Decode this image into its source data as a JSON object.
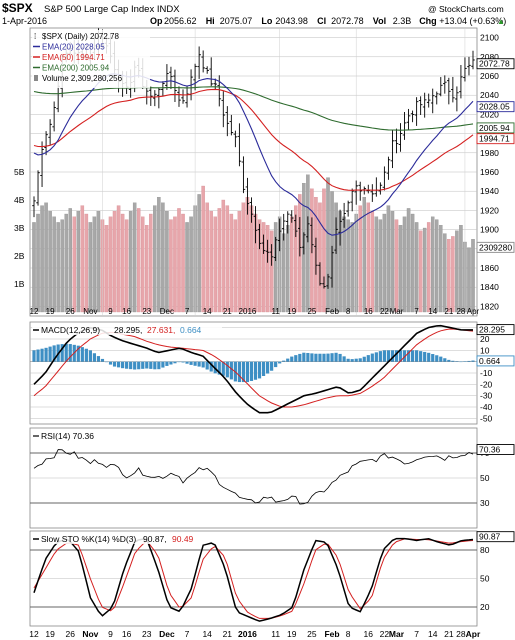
{
  "header": {
    "symbol": "$SPX",
    "name": "S&P 500 Large Cap Index INDX",
    "credit": "@ StockCharts.com",
    "date": "1-Apr-2016",
    "stats": [
      {
        "label": "Op",
        "value": "2056.62"
      },
      {
        "label": "Hi",
        "value": "2075.07"
      },
      {
        "label": "Lo",
        "value": "2043.98"
      },
      {
        "label": "Cl",
        "value": "2072.78"
      },
      {
        "label": "Vol",
        "value": "2.3B"
      },
      {
        "label": "Chg",
        "value": "+13.04 (+0.63%)"
      }
    ],
    "up_glyph": "▲"
  },
  "price_panel": {
    "legend": [
      "$SPX (Daily) 2072.78",
      "EMA(20) 2028.05",
      "EMA(50) 1994.71",
      "EMA(200) 2005.94",
      "Volume 2,309,280,256"
    ],
    "y_ticks": [
      "2100",
      "2080",
      "2060",
      "2040",
      "2020",
      "2000",
      "1980",
      "1960",
      "1940",
      "1920",
      "1900",
      "1880",
      "1860",
      "1840",
      "1820"
    ],
    "vol_ticks": [
      "5B",
      "4B",
      "3B",
      "2B",
      "1B"
    ],
    "tags": [
      "2072.78",
      "2028.05",
      "2005.94",
      "1994.71",
      "2309280"
    ],
    "inner_dates": [
      "12",
      "19",
      "26",
      "Nov",
      "9",
      "16",
      "23",
      "Dec",
      "7",
      "14",
      "21",
      "2016",
      "11",
      "19",
      "25",
      "Feb",
      "8",
      "16",
      "22",
      "Mar",
      "7",
      "14",
      "21",
      "28",
      "Apr"
    ]
  },
  "macd_panel": {
    "label": "MACD(12,26,9)",
    "v1": "28.295,",
    "v2": "27.631,",
    "v3": "0.664",
    "y_ticks": [
      "30",
      "20",
      "10",
      "0",
      "-10",
      "-20",
      "-30",
      "-40",
      "-50"
    ],
    "tags": [
      "28.295",
      "0.664"
    ]
  },
  "rsi_panel": {
    "label": "RSI(14) 70.36",
    "y_ticks": [
      "70",
      "50",
      "30"
    ],
    "tag": "70.36"
  },
  "sto_panel": {
    "label_a": "Slow STO %K(14) %D(3)",
    "v1": "90.87,",
    "v2": "90.49",
    "y_ticks": [
      "80",
      "50",
      "20"
    ],
    "tag": "90.87"
  },
  "x_axis": {
    "labels": [
      "12",
      "19",
      "26",
      "Nov",
      "9",
      "16",
      "23",
      "Dec",
      "7",
      "14",
      "21",
      "2016",
      "11",
      "19",
      "25",
      "Feb",
      "8",
      "16",
      "22",
      "Mar",
      "7",
      "14",
      "21",
      "28",
      "Apr"
    ]
  },
  "colors": {
    "ema20": "#2b2b9a",
    "ema50": "#d42020",
    "ema200": "#2e6b2e",
    "vol_up": "#a8a8a8",
    "vol_down": "#e7a6ab",
    "macd_hist": "#3e8fc4",
    "sto_d": "#d42020",
    "grid": "#bdbdbd"
  },
  "chart_data": [
    {
      "type": "ohlc",
      "panel": "price",
      "title": "S&P 500 Large Cap Index INDX",
      "ylim": [
        1810,
        2110
      ],
      "x": [
        "12",
        "19",
        "26",
        "Nov",
        "9",
        "16",
        "23",
        "Dec",
        "7",
        "14",
        "21",
        "2016",
        "11",
        "19",
        "25",
        "Feb",
        "8",
        "16",
        "22",
        "Mar",
        "7",
        "14",
        "21",
        "28",
        "Apr"
      ],
      "close_knots": [
        1930,
        1995,
        2015,
        2075,
        2090,
        2080,
        2085,
        2100,
        2090,
        2065,
        2040,
        2070,
        2050,
        2035,
        2055,
        2060,
        2030,
        2050,
        2085,
        2060,
        2045,
        2012,
        1995,
        1940,
        1910,
        1880,
        1870,
        1905,
        1920,
        1880,
        1910,
        1850,
        1840,
        1895,
        1915,
        1945,
        1945,
        1940,
        1945,
        1985,
        2000,
        2020,
        2030,
        2032,
        2045,
        2050,
        2040,
        2065,
        2073
      ],
      "series": [
        {
          "name": "EMA(20)",
          "value": 2028.05
        },
        {
          "name": "EMA(50)",
          "value": 1994.71
        },
        {
          "name": "EMA(200)",
          "value": 2005.94
        }
      ]
    },
    {
      "type": "bar",
      "panel": "volume",
      "ylim": [
        0,
        5
      ],
      "unit": "B",
      "values": [
        3.2,
        3.5,
        3.8,
        3.9,
        3.6,
        3.4,
        3.2,
        3.3,
        3.5,
        3.7,
        3.4,
        3.6,
        3.8,
        3.5,
        3.2,
        3.4,
        3.6,
        3.3,
        3.1,
        3.4,
        3.6,
        3.8,
        3.5,
        3.3,
        3.6,
        3.9,
        3.7,
        3.4,
        3.1,
        3.5,
        3.8,
        4.1,
        3.9,
        3.6,
        3.3,
        3.4,
        3.7,
        3.5,
        3.2,
        3.4,
        3.8,
        4.2,
        4.5,
        3.9,
        3.6,
        3.4,
        3.7,
        4.0,
        3.8,
        3.5,
        3.3,
        3.6,
        3.9,
        4.1,
        3.8,
        3.5,
        3.3,
        3.2,
        3.1,
        2.9,
        3.2,
        3.4,
        2.8,
        3.1,
        3.4,
        3.8,
        4.2,
        4.6,
        4.9,
        4.4,
        4.1,
        3.9,
        4.4,
        4.8,
        4.3,
        3.9,
        3.6,
        3.4,
        3.3,
        3.2,
        3.5,
        3.8,
        4.1,
        3.9,
        3.6,
        3.4,
        3.3,
        3.5,
        3.8,
        3.6,
        3.3,
        3.1,
        3.4,
        3.7,
        3.5,
        3.2,
        2.9,
        3.0,
        3.2,
        3.4,
        3.3,
        3.1,
        2.8,
        2.6,
        2.7,
        2.9,
        3.1,
        2.5,
        2.3,
        2.6
      ],
      "last_value": 2309280256
    },
    {
      "type": "line",
      "panel": "macd",
      "ylim": [
        -55,
        35
      ],
      "series": [
        {
          "name": "MACD(12,26,9)",
          "value": 28.295,
          "knots": [
            -20,
            -10,
            5,
            18,
            26,
            30,
            28,
            22,
            18,
            15,
            12,
            8,
            10,
            12,
            8,
            5,
            -5,
            -15,
            -28,
            -38,
            -45,
            -45,
            -40,
            -35,
            -30,
            -28,
            -25,
            -22,
            -28,
            -25,
            -15,
            -5,
            5,
            15,
            25,
            30,
            32,
            30,
            28,
            28
          ]
        },
        {
          "name": "Signal",
          "value": 27.631,
          "knots": [
            -30,
            -22,
            -10,
            2,
            12,
            20,
            25,
            26,
            24,
            22,
            18,
            15,
            13,
            12,
            11,
            10,
            5,
            -2,
            -10,
            -20,
            -30,
            -36,
            -40,
            -40,
            -38,
            -35,
            -32,
            -30,
            -30,
            -28,
            -22,
            -15,
            -5,
            5,
            15,
            22,
            27,
            29,
            28,
            27
          ]
        },
        {
          "name": "Histogram",
          "value": 0.664
        }
      ]
    },
    {
      "type": "line",
      "panel": "rsi",
      "ylim": [
        10,
        90
      ],
      "series": [
        {
          "name": "RSI(14)",
          "value": 70.36,
          "knots": [
            58,
            64,
            68,
            72,
            70,
            66,
            62,
            64,
            60,
            58,
            52,
            56,
            54,
            50,
            52,
            55,
            48,
            52,
            58,
            54,
            46,
            40,
            34,
            30,
            32,
            35,
            31,
            34,
            33,
            30,
            35,
            40,
            46,
            52,
            58,
            62,
            64,
            66,
            68,
            65,
            62,
            66,
            69,
            68,
            66,
            68,
            70,
            70
          ]
        }
      ]
    },
    {
      "type": "line",
      "panel": "stochastic",
      "ylim": [
        0,
        100
      ],
      "series": [
        {
          "name": "Slow STO %K(14)",
          "value": 90.87,
          "knots": [
            35,
            70,
            88,
            92,
            78,
            30,
            10,
            20,
            60,
            90,
            92,
            60,
            20,
            15,
            40,
            85,
            88,
            60,
            15,
            10,
            5,
            8,
            12,
            20,
            60,
            90,
            88,
            60,
            20,
            15,
            40,
            80,
            92,
            92,
            90,
            92,
            88,
            85,
            90,
            91
          ]
        },
        {
          "name": "%D(3)",
          "value": 90.49,
          "knots": [
            40,
            60,
            80,
            88,
            85,
            50,
            20,
            15,
            45,
            78,
            90,
            75,
            35,
            18,
            30,
            70,
            85,
            72,
            30,
            14,
            8,
            8,
            11,
            16,
            45,
            80,
            88,
            72,
            35,
            18,
            30,
            70,
            88,
            92,
            91,
            91,
            89,
            87,
            89,
            90
          ]
        }
      ]
    }
  ]
}
